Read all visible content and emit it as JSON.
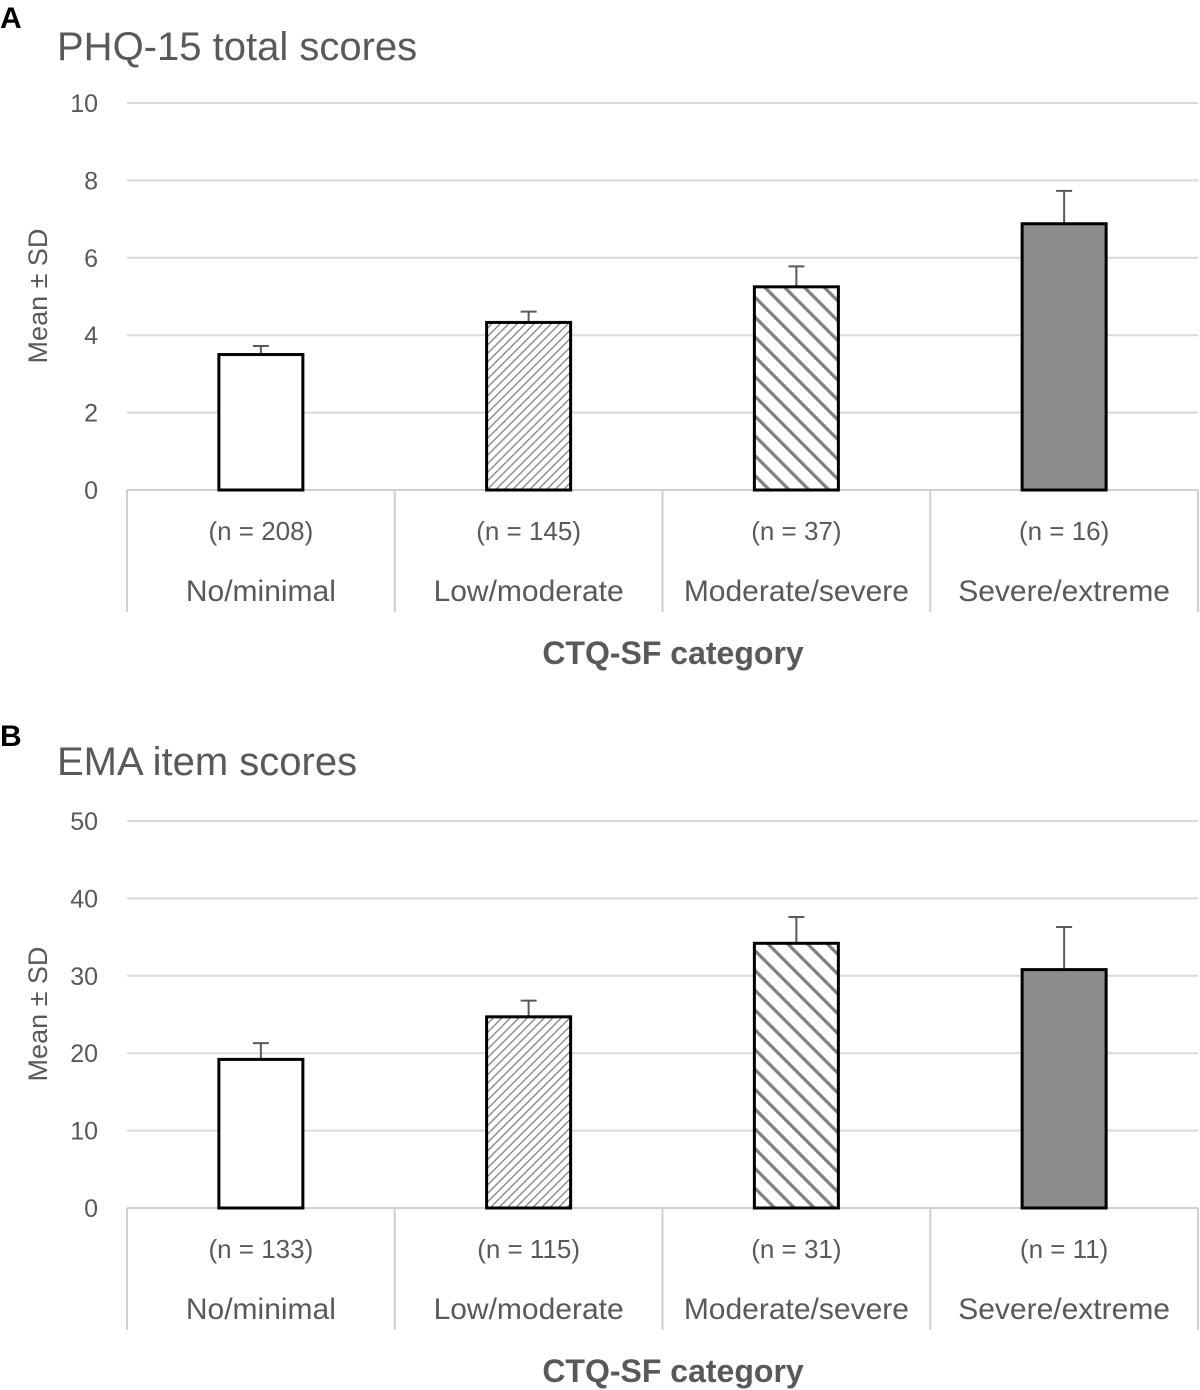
{
  "chart_data": [
    {
      "panel": "A",
      "type": "bar",
      "title": "PHQ-15 total scores",
      "ylabel": "Mean ± SD",
      "xlabel": "CTQ-SF category",
      "ylim": [
        0,
        10
      ],
      "yticks": [
        0,
        2,
        4,
        6,
        8,
        10
      ],
      "categories": [
        "No/minimal",
        "Low/moderate",
        "Moderate/severe",
        "Severe/extreme"
      ],
      "sample_sizes": [
        "(n = 208)",
        "(n = 145)",
        "(n = 37)",
        "(n = 16)"
      ],
      "values": [
        3.5,
        4.33,
        5.25,
        6.88
      ],
      "error_upper": [
        0.22,
        0.28,
        0.53,
        0.85
      ],
      "fills": [
        "white",
        "hatch-fine",
        "hatch-coarse",
        "solid-gray"
      ],
      "grid": true,
      "legend": "none"
    },
    {
      "panel": "B",
      "type": "bar",
      "title": "EMA item scores",
      "ylabel": "Mean ± SD",
      "xlabel": "CTQ-SF category",
      "ylim": [
        0,
        50
      ],
      "yticks": [
        0,
        10,
        20,
        30,
        40,
        50
      ],
      "categories": [
        "No/minimal",
        "Low/moderate",
        "Moderate/severe",
        "Severe/extreme"
      ],
      "sample_sizes": [
        "(n = 133)",
        "(n = 115)",
        "(n = 31)",
        "(n = 11)"
      ],
      "values": [
        19.2,
        24.7,
        34.2,
        30.8
      ],
      "error_upper": [
        2.1,
        2.1,
        3.4,
        5.5
      ],
      "fills": [
        "white",
        "hatch-fine",
        "hatch-coarse",
        "solid-gray"
      ],
      "grid": true,
      "legend": "none"
    }
  ],
  "colors": {
    "axis": "#d0d0d0",
    "grid": "#d9d9d9",
    "text": "#595959",
    "bar_outline": "#000000",
    "solid_fill": "#8c8c8c",
    "hatch": "#808080"
  }
}
